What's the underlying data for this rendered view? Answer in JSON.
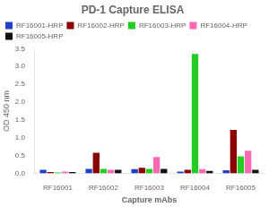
{
  "chart_data": {
    "type": "bar",
    "title": "PD-1 Capture ELISA",
    "xlabel": "Capture mAbs",
    "ylabel": "OD 450 nm",
    "categories": [
      "RF16001",
      "RF16002",
      "RF16003",
      "RF16004",
      "RF16005"
    ],
    "series": [
      {
        "name": "RF16001-HRP",
        "color": "#1f3fcc",
        "values": [
          0.1,
          0.13,
          0.12,
          0.05,
          0.09
        ]
      },
      {
        "name": "RF16002-HRP",
        "color": "#8b0000",
        "values": [
          0.04,
          0.58,
          0.16,
          0.1,
          1.22
        ]
      },
      {
        "name": "RF16003-HRP",
        "color": "#22cc22",
        "values": [
          0.03,
          0.13,
          0.13,
          3.35,
          0.48
        ]
      },
      {
        "name": "RF16004-HRP",
        "color": "#ff69b4",
        "values": [
          0.05,
          0.1,
          0.46,
          0.12,
          0.64
        ]
      },
      {
        "name": "RF16005-HRP",
        "color": "#111111",
        "values": [
          0.04,
          0.1,
          0.13,
          0.07,
          0.1
        ]
      }
    ],
    "ylim": [
      0,
      3.5
    ],
    "yticks": [
      {
        "value": 0,
        "label": "0.0"
      },
      0.5,
      {
        "value": 1,
        "label": "1.0"
      },
      1.5,
      {
        "value": 2,
        "label": "2.0"
      },
      2.5,
      {
        "value": 3,
        "label": "3.0"
      },
      3.5
    ],
    "grid": false,
    "legend": "upper left"
  }
}
